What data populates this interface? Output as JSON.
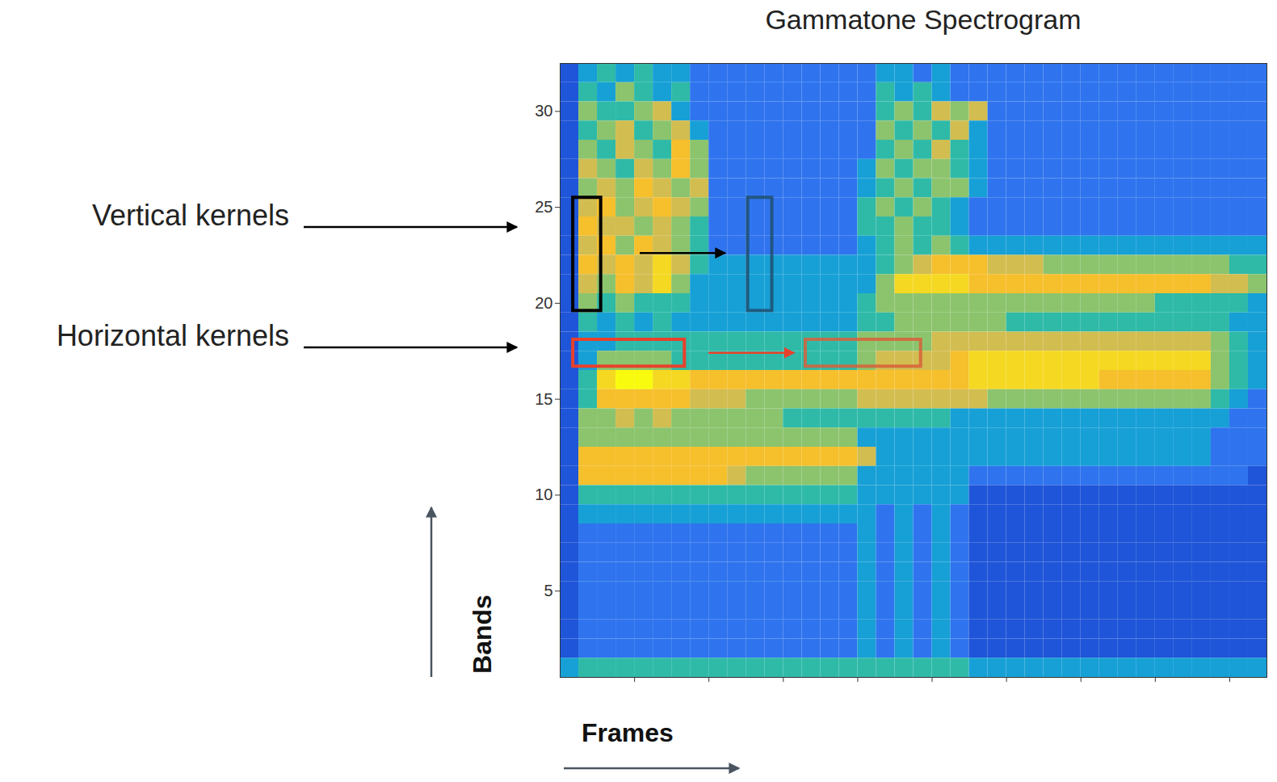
{
  "chart_data": {
    "type": "heatmap",
    "title": "Gammatone Spectrogram",
    "xlabel": "Frames",
    "ylabel": "Bands",
    "annotations": [
      "Vertical kernels",
      "Horizontal kernels"
    ],
    "xlim": [
      0,
      38
    ],
    "xticks": [
      4,
      8,
      12,
      16,
      20,
      24,
      28,
      32,
      36
    ],
    "ylim": [
      0.5,
      32.5
    ],
    "yticks": [
      5,
      10,
      15,
      20,
      25,
      30
    ],
    "tick_labels": "y",
    "zlim": [
      0,
      10
    ],
    "x": [
      0,
      1,
      2,
      3,
      4,
      5,
      6,
      7,
      8,
      9,
      10,
      11,
      12,
      13,
      14,
      15,
      16,
      17,
      18,
      19,
      20,
      21,
      22,
      23,
      24,
      25,
      26,
      27,
      28,
      29,
      30,
      31,
      32,
      33,
      34,
      35,
      36,
      37
    ],
    "y": [
      32,
      31,
      30,
      29,
      28,
      27,
      26,
      25,
      24,
      23,
      22,
      21,
      20,
      19,
      18,
      17,
      16,
      15,
      14,
      13,
      12,
      11,
      10,
      9,
      8,
      7,
      6,
      5,
      4,
      3,
      2,
      1
    ],
    "z": [
      [
        2,
        4,
        5,
        4,
        5,
        4,
        4,
        3,
        3,
        3,
        3,
        3,
        3,
        3,
        3,
        3,
        3,
        4,
        4,
        3,
        4,
        3,
        3,
        3,
        3,
        3,
        3,
        3,
        3,
        3,
        3,
        3,
        3,
        3,
        3,
        3,
        3,
        3
      ],
      [
        2,
        5,
        4,
        6,
        5,
        4,
        5,
        3,
        3,
        3,
        3,
        3,
        3,
        3,
        3,
        3,
        3,
        5,
        4,
        5,
        4,
        3,
        3,
        3,
        3,
        3,
        3,
        3,
        3,
        3,
        3,
        3,
        3,
        3,
        3,
        3,
        3,
        3
      ],
      [
        2,
        6,
        5,
        5,
        6,
        7,
        4,
        3,
        3,
        3,
        3,
        3,
        3,
        3,
        3,
        3,
        3,
        5,
        6,
        5,
        7,
        6,
        7,
        3,
        3,
        3,
        3,
        3,
        3,
        3,
        3,
        3,
        3,
        3,
        3,
        3,
        3,
        3
      ],
      [
        2,
        5,
        6,
        7,
        5,
        6,
        7,
        4,
        3,
        3,
        3,
        3,
        3,
        3,
        3,
        3,
        3,
        6,
        5,
        6,
        5,
        7,
        4,
        3,
        3,
        3,
        3,
        3,
        3,
        3,
        3,
        3,
        3,
        3,
        3,
        3,
        3,
        3
      ],
      [
        2,
        6,
        5,
        7,
        6,
        5,
        8,
        6,
        3,
        3,
        3,
        3,
        3,
        3,
        3,
        3,
        3,
        5,
        6,
        5,
        7,
        5,
        4,
        3,
        3,
        3,
        3,
        3,
        3,
        3,
        3,
        3,
        3,
        3,
        3,
        3,
        3,
        3
      ],
      [
        2,
        7,
        6,
        5,
        7,
        6,
        8,
        6,
        3,
        3,
        3,
        3,
        3,
        3,
        3,
        3,
        4,
        6,
        5,
        6,
        6,
        5,
        4,
        3,
        3,
        3,
        3,
        3,
        3,
        3,
        3,
        3,
        3,
        3,
        3,
        3,
        3,
        3
      ],
      [
        2,
        6,
        7,
        6,
        8,
        7,
        6,
        7,
        3,
        3,
        3,
        3,
        3,
        3,
        3,
        3,
        4,
        5,
        6,
        5,
        6,
        6,
        4,
        3,
        3,
        3,
        3,
        3,
        3,
        3,
        3,
        3,
        3,
        3,
        3,
        3,
        3,
        3
      ],
      [
        2,
        7,
        8,
        6,
        7,
        8,
        7,
        6,
        3,
        3,
        3,
        3,
        3,
        3,
        3,
        3,
        5,
        6,
        5,
        6,
        5,
        4,
        3,
        3,
        3,
        3,
        3,
        3,
        3,
        3,
        3,
        3,
        3,
        3,
        3,
        3,
        3,
        3
      ],
      [
        2,
        8,
        7,
        7,
        6,
        7,
        6,
        5,
        3,
        3,
        3,
        3,
        3,
        3,
        3,
        3,
        5,
        5,
        6,
        5,
        5,
        4,
        3,
        3,
        3,
        3,
        3,
        3,
        3,
        3,
        3,
        3,
        3,
        3,
        3,
        3,
        3,
        3
      ],
      [
        2,
        7,
        8,
        6,
        8,
        7,
        6,
        5,
        3,
        3,
        3,
        3,
        3,
        3,
        3,
        3,
        4,
        5,
        6,
        5,
        6,
        5,
        4,
        4,
        4,
        4,
        4,
        4,
        4,
        4,
        4,
        4,
        4,
        4,
        4,
        4,
        4,
        4
      ],
      [
        2,
        8,
        7,
        8,
        7,
        9,
        7,
        5,
        4,
        4,
        4,
        4,
        4,
        4,
        4,
        4,
        4,
        5,
        6,
        7,
        8,
        8,
        8,
        7,
        7,
        7,
        6,
        6,
        6,
        6,
        6,
        6,
        6,
        6,
        6,
        6,
        5,
        5
      ],
      [
        2,
        7,
        6,
        8,
        7,
        9,
        6,
        4,
        4,
        4,
        4,
        4,
        4,
        4,
        4,
        4,
        4,
        6,
        9,
        9,
        9,
        9,
        8,
        8,
        8,
        8,
        8,
        8,
        8,
        8,
        8,
        8,
        8,
        8,
        8,
        7,
        7,
        6
      ],
      [
        2,
        6,
        5,
        6,
        5,
        5,
        5,
        4,
        4,
        4,
        4,
        4,
        4,
        4,
        4,
        4,
        5,
        6,
        6,
        6,
        6,
        6,
        6,
        6,
        6,
        6,
        6,
        6,
        6,
        6,
        6,
        6,
        5,
        5,
        5,
        5,
        5,
        4
      ],
      [
        2,
        5,
        4,
        5,
        4,
        5,
        4,
        4,
        4,
        4,
        4,
        4,
        4,
        4,
        4,
        4,
        5,
        5,
        6,
        6,
        6,
        6,
        6,
        6,
        5,
        5,
        5,
        5,
        5,
        5,
        5,
        5,
        5,
        5,
        5,
        5,
        4,
        4
      ],
      [
        2,
        4,
        4,
        5,
        5,
        5,
        5,
        5,
        5,
        5,
        5,
        5,
        5,
        5,
        5,
        5,
        6,
        6,
        6,
        6,
        7,
        7,
        7,
        7,
        7,
        7,
        7,
        7,
        7,
        7,
        7,
        7,
        7,
        7,
        7,
        6,
        5,
        4
      ],
      [
        2,
        4,
        6,
        6,
        6,
        6,
        5,
        5,
        5,
        5,
        5,
        5,
        5,
        5,
        5,
        5,
        6,
        7,
        7,
        7,
        7,
        8,
        9,
        9,
        9,
        9,
        9,
        9,
        9,
        9,
        9,
        9,
        9,
        9,
        9,
        6,
        5,
        4
      ],
      [
        2,
        5,
        9,
        10,
        10,
        9,
        9,
        8,
        8,
        8,
        8,
        8,
        8,
        8,
        8,
        8,
        8,
        8,
        8,
        8,
        8,
        8,
        9,
        9,
        9,
        9,
        9,
        9,
        9,
        8,
        8,
        8,
        8,
        8,
        8,
        6,
        5,
        4
      ],
      [
        2,
        5,
        8,
        8,
        8,
        8,
        8,
        7,
        7,
        7,
        6,
        6,
        6,
        6,
        6,
        6,
        7,
        7,
        7,
        7,
        7,
        7,
        7,
        6,
        6,
        6,
        6,
        6,
        6,
        6,
        6,
        6,
        6,
        6,
        6,
        5,
        4,
        3
      ],
      [
        2,
        6,
        6,
        7,
        6,
        7,
        6,
        6,
        6,
        6,
        6,
        6,
        5,
        5,
        5,
        5,
        5,
        5,
        5,
        5,
        5,
        4,
        4,
        4,
        4,
        4,
        4,
        4,
        4,
        4,
        4,
        4,
        4,
        4,
        4,
        4,
        3,
        3
      ],
      [
        2,
        6,
        6,
        6,
        6,
        6,
        6,
        6,
        6,
        6,
        6,
        6,
        6,
        6,
        6,
        6,
        4,
        4,
        4,
        4,
        4,
        4,
        4,
        4,
        4,
        4,
        4,
        4,
        4,
        4,
        4,
        4,
        4,
        4,
        4,
        3,
        3,
        3
      ],
      [
        2,
        8,
        8,
        8,
        8,
        8,
        8,
        8,
        8,
        8,
        8,
        8,
        8,
        8,
        8,
        8,
        7,
        4,
        4,
        4,
        4,
        4,
        4,
        4,
        4,
        4,
        4,
        4,
        4,
        4,
        4,
        4,
        4,
        4,
        4,
        3,
        3,
        3
      ],
      [
        2,
        8,
        8,
        8,
        8,
        8,
        8,
        8,
        8,
        7,
        6,
        6,
        6,
        6,
        6,
        6,
        4,
        4,
        4,
        4,
        4,
        4,
        3,
        3,
        3,
        3,
        3,
        3,
        3,
        3,
        3,
        3,
        3,
        3,
        3,
        3,
        3,
        2
      ],
      [
        2,
        5,
        5,
        5,
        5,
        5,
        5,
        5,
        5,
        5,
        5,
        5,
        5,
        5,
        5,
        5,
        4,
        4,
        4,
        4,
        4,
        4,
        2,
        2,
        2,
        2,
        2,
        2,
        2,
        2,
        2,
        2,
        2,
        2,
        2,
        2,
        2,
        2
      ],
      [
        2,
        4,
        4,
        4,
        4,
        4,
        4,
        4,
        4,
        4,
        4,
        4,
        4,
        4,
        4,
        4,
        4,
        3,
        4,
        3,
        4,
        3,
        2,
        2,
        2,
        2,
        2,
        2,
        2,
        2,
        2,
        2,
        2,
        2,
        2,
        2,
        2,
        2
      ],
      [
        2,
        3,
        3,
        3,
        3,
        3,
        3,
        3,
        3,
        3,
        3,
        3,
        3,
        3,
        3,
        3,
        4,
        3,
        4,
        3,
        4,
        3,
        2,
        2,
        2,
        2,
        2,
        2,
        2,
        2,
        2,
        2,
        2,
        2,
        2,
        2,
        2,
        2
      ],
      [
        2,
        3,
        3,
        3,
        3,
        3,
        3,
        3,
        3,
        3,
        3,
        3,
        3,
        3,
        3,
        3,
        4,
        3,
        4,
        3,
        4,
        3,
        2,
        2,
        2,
        2,
        2,
        2,
        2,
        2,
        2,
        2,
        2,
        2,
        2,
        2,
        2,
        2
      ],
      [
        2,
        3,
        3,
        3,
        3,
        3,
        3,
        3,
        3,
        3,
        3,
        3,
        3,
        3,
        3,
        3,
        4,
        3,
        4,
        3,
        4,
        3,
        2,
        2,
        2,
        2,
        2,
        2,
        2,
        2,
        2,
        2,
        2,
        2,
        2,
        2,
        2,
        2
      ],
      [
        2,
        3,
        3,
        3,
        3,
        3,
        3,
        3,
        3,
        3,
        3,
        3,
        3,
        3,
        3,
        3,
        4,
        3,
        4,
        3,
        4,
        3,
        2,
        2,
        2,
        2,
        2,
        2,
        2,
        2,
        2,
        2,
        2,
        2,
        2,
        2,
        2,
        2
      ],
      [
        2,
        3,
        3,
        3,
        3,
        3,
        3,
        3,
        3,
        3,
        3,
        3,
        3,
        3,
        3,
        3,
        4,
        3,
        4,
        3,
        4,
        3,
        2,
        2,
        2,
        2,
        2,
        2,
        2,
        2,
        2,
        2,
        2,
        2,
        2,
        2,
        2,
        2
      ],
      [
        2,
        3,
        3,
        3,
        3,
        3,
        3,
        3,
        3,
        3,
        3,
        3,
        3,
        3,
        3,
        3,
        4,
        3,
        4,
        3,
        4,
        3,
        2,
        2,
        2,
        2,
        2,
        2,
        2,
        2,
        2,
        2,
        2,
        2,
        2,
        2,
        2,
        2
      ],
      [
        2,
        3,
        3,
        3,
        3,
        3,
        3,
        3,
        3,
        3,
        3,
        3,
        3,
        3,
        3,
        3,
        4,
        3,
        4,
        3,
        4,
        3,
        2,
        2,
        2,
        2,
        2,
        2,
        2,
        2,
        2,
        2,
        2,
        2,
        2,
        2,
        2,
        2
      ],
      [
        4,
        5,
        5,
        5,
        5,
        5,
        5,
        5,
        5,
        5,
        5,
        5,
        5,
        5,
        5,
        5,
        5,
        5,
        5,
        5,
        5,
        5,
        4,
        4,
        4,
        4,
        4,
        4,
        4,
        4,
        4,
        4,
        4,
        4,
        4,
        4,
        4,
        4
      ]
    ]
  }
}
